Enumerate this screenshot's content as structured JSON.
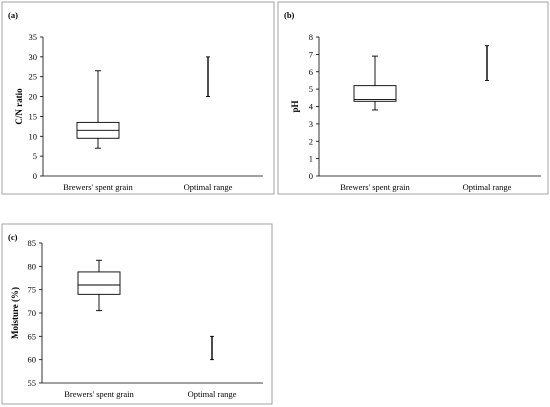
{
  "chart_data": [
    {
      "panel": "(a)",
      "type": "box",
      "ylabel": "C/N ratio",
      "ylim": [
        0,
        35
      ],
      "yticks": [
        0,
        5,
        10,
        15,
        20,
        25,
        30,
        35
      ],
      "categories": [
        "Brewers' spent grain",
        "Optimal range"
      ],
      "boxes": [
        {
          "category": "Brewers' spent grain",
          "min": 7,
          "q1": 9.5,
          "median": 11.5,
          "q3": 13.5,
          "max": 26.5
        }
      ],
      "ranges": [
        {
          "category": "Optimal range",
          "low": 20,
          "high": 30
        }
      ]
    },
    {
      "panel": "(b)",
      "type": "box",
      "ylabel": "pH",
      "ylim": [
        0,
        8
      ],
      "yticks": [
        0,
        1,
        2,
        3,
        4,
        5,
        6,
        7,
        8
      ],
      "categories": [
        "Brewers' spent grain",
        "Optimal range"
      ],
      "boxes": [
        {
          "category": "Brewers' spent grain",
          "min": 3.8,
          "q1": 4.3,
          "median": 4.4,
          "q3": 5.2,
          "max": 6.9
        }
      ],
      "ranges": [
        {
          "category": "Optimal range",
          "low": 5.5,
          "high": 7.5
        }
      ]
    },
    {
      "panel": "(c)",
      "type": "box",
      "ylabel": "Moisture (%)",
      "ylim": [
        55,
        85
      ],
      "yticks": [
        55,
        60,
        65,
        70,
        75,
        80,
        85
      ],
      "categories": [
        "Brewers' spent grain",
        "Optimal range"
      ],
      "boxes": [
        {
          "category": "Brewers' spent grain",
          "min": 70.5,
          "q1": 74,
          "median": 76,
          "q3": 78.8,
          "max": 81.3
        }
      ],
      "ranges": [
        {
          "category": "Optimal range",
          "low": 60,
          "high": 65
        }
      ]
    }
  ]
}
